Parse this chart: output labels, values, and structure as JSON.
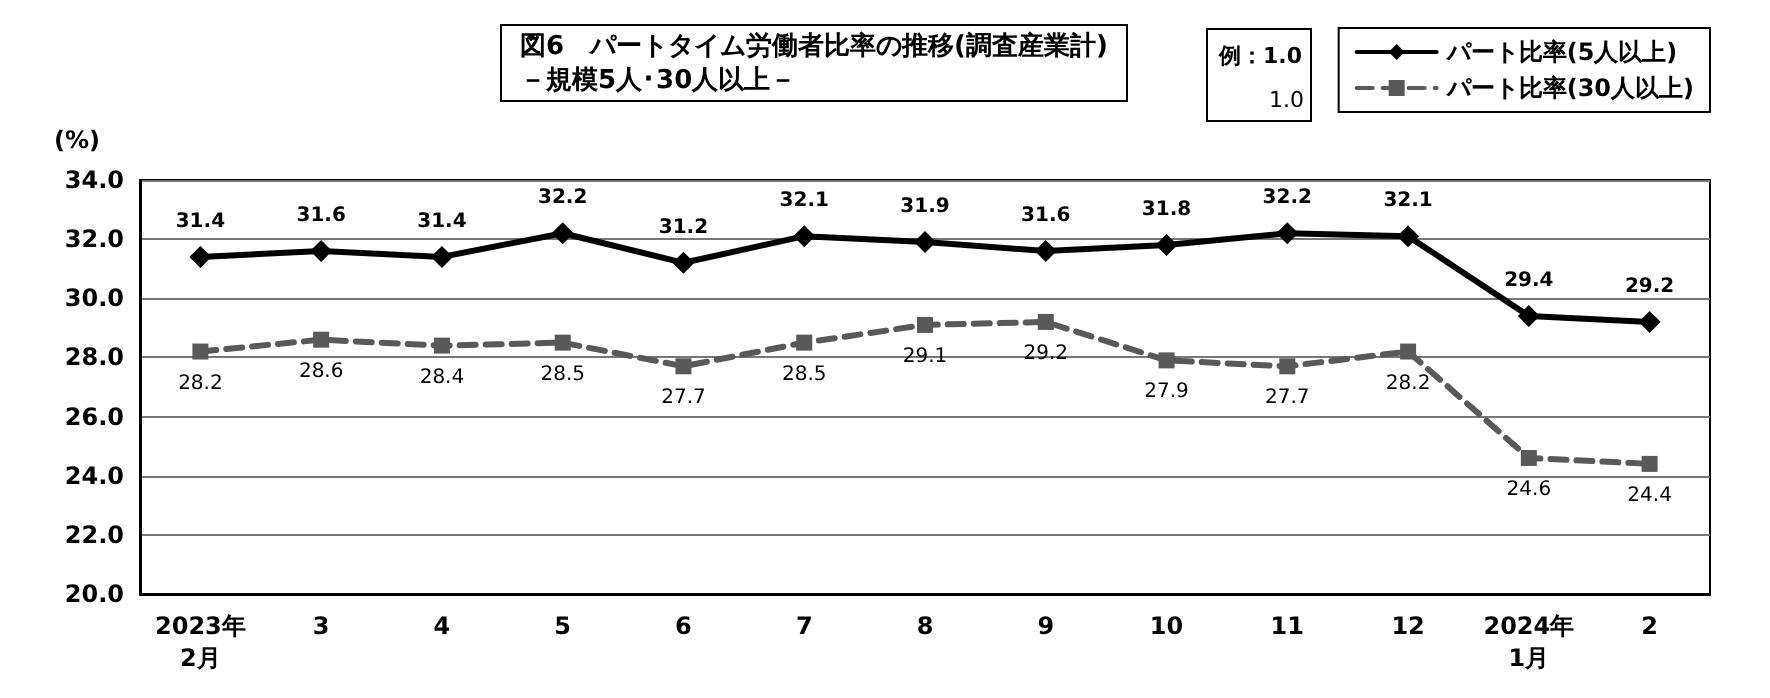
{
  "chart_data": {
    "type": "line",
    "title": "図6　パートタイム労働者比率の推移(調査産業計)",
    "subtitle": "－規模5人･30人以上－",
    "ylabel": "(%)",
    "annotations": [
      "例：1.0",
      "1.0"
    ],
    "categories": [
      "2023年\n2月",
      "3",
      "4",
      "5",
      "6",
      "7",
      "8",
      "9",
      "10",
      "11",
      "12",
      "2024年\n1月",
      "2"
    ],
    "series": [
      {
        "name": "パート比率(5人以上)",
        "color": "#000000",
        "marker": "diamond",
        "line_style": "solid",
        "values": [
          31.4,
          31.6,
          31.4,
          32.2,
          31.2,
          32.1,
          31.9,
          31.6,
          31.8,
          32.2,
          32.1,
          29.4,
          29.2
        ]
      },
      {
        "name": "パート比率(30人以上)",
        "color": "#595959",
        "marker": "square",
        "line_style": "dashed",
        "values": [
          28.2,
          28.6,
          28.4,
          28.5,
          27.7,
          28.5,
          29.1,
          29.2,
          27.9,
          27.7,
          28.2,
          24.6,
          24.4
        ]
      }
    ],
    "ylim": [
      20,
      34
    ],
    "yticks": [
      {
        "value": 20,
        "label": "20.0"
      },
      {
        "value": 22,
        "label": "22.0"
      },
      {
        "value": 24,
        "label": "24.0"
      },
      {
        "value": 26,
        "label": "26.0"
      },
      {
        "value": 28,
        "label": "28.0"
      },
      {
        "value": 30,
        "label": "30.0"
      },
      {
        "value": 32,
        "label": "32.0"
      },
      {
        "value": 34,
        "label": "34.0"
      }
    ],
    "grid": "y",
    "legend": "top right",
    "data_labels": true
  }
}
